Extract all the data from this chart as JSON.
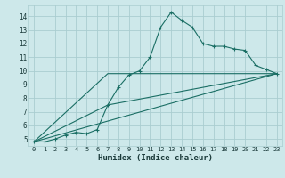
{
  "xlabel": "Humidex (Indice chaleur)",
  "ylabel": "",
  "bg_color": "#cde8ea",
  "grid_color": "#aacdd0",
  "line_color": "#1a6e64",
  "xlim": [
    -0.5,
    23.5
  ],
  "ylim": [
    4.5,
    14.8
  ],
  "xticks": [
    0,
    1,
    2,
    3,
    4,
    5,
    6,
    7,
    8,
    9,
    10,
    11,
    12,
    13,
    14,
    15,
    16,
    17,
    18,
    19,
    20,
    21,
    22,
    23
  ],
  "yticks": [
    5,
    6,
    7,
    8,
    9,
    10,
    11,
    12,
    13,
    14
  ],
  "line1_x": [
    0,
    1,
    2,
    3,
    4,
    5,
    6,
    7,
    8,
    9,
    10,
    11,
    12,
    13,
    14,
    15,
    16,
    17,
    18,
    19,
    20,
    21,
    22,
    23
  ],
  "line1_y": [
    4.8,
    4.8,
    5.0,
    5.3,
    5.5,
    5.4,
    5.7,
    7.5,
    8.8,
    9.7,
    10.0,
    11.0,
    13.2,
    14.3,
    13.7,
    13.2,
    12.0,
    11.8,
    11.8,
    11.6,
    11.5,
    10.4,
    10.1,
    9.8
  ],
  "line2_x": [
    0,
    23
  ],
  "line2_y": [
    4.8,
    9.8
  ],
  "line3_x": [
    0,
    7,
    23
  ],
  "line3_y": [
    4.8,
    7.5,
    9.8
  ],
  "line4_x": [
    0,
    7,
    23
  ],
  "line4_y": [
    4.8,
    9.8,
    9.8
  ]
}
